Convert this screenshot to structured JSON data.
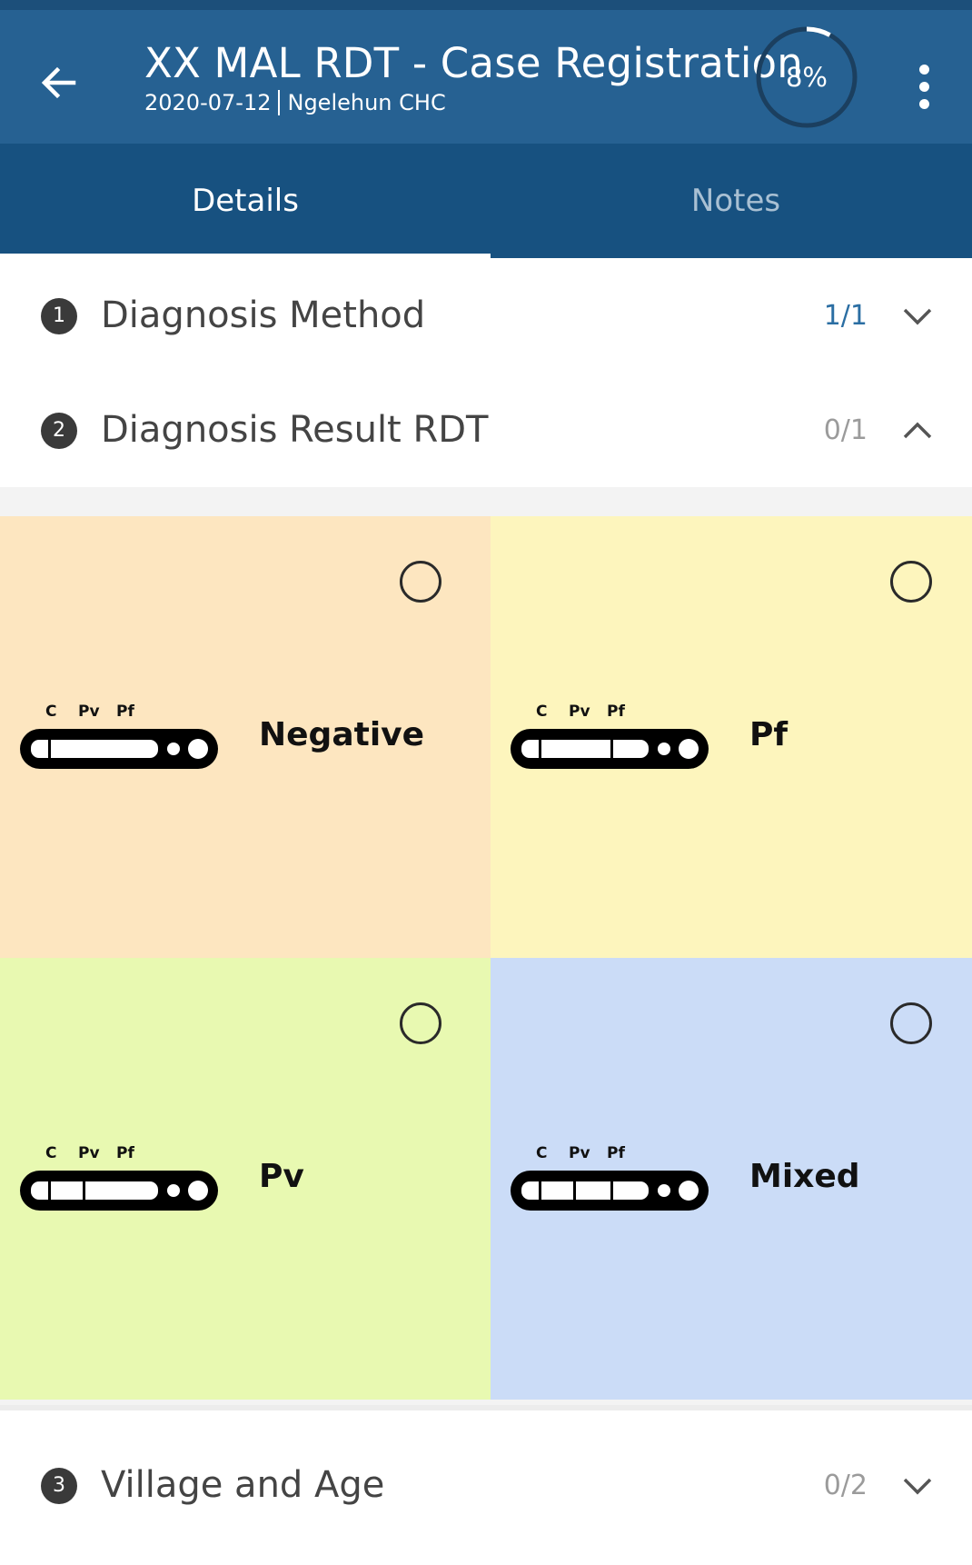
{
  "header": {
    "title": "XX MAL RDT - Case Registration",
    "date": "2020-07-12",
    "org_unit": "Ngelehun CHC",
    "progress_label": "8%",
    "progress_value": 0.08
  },
  "tabs": [
    {
      "label": "Details",
      "active": true
    },
    {
      "label": "Notes",
      "active": false
    }
  ],
  "sections": [
    {
      "number": "1",
      "title": "Diagnosis Method",
      "count": "1/1",
      "expanded": false
    },
    {
      "number": "2",
      "title": "Diagnosis Result RDT",
      "count": "0/1",
      "expanded": true
    },
    {
      "number": "3",
      "title": "Village and Age",
      "count": "0/2",
      "expanded": false
    }
  ],
  "options": [
    {
      "label": "Negative",
      "color": "#fde6c0",
      "lines": [
        "C"
      ],
      "selected": false
    },
    {
      "label": "Pf",
      "color": "#fdf5bd",
      "lines": [
        "C",
        "Pf"
      ],
      "selected": false
    },
    {
      "label": "Pv",
      "color": "#e8f9b1",
      "lines": [
        "C",
        "Pv"
      ],
      "selected": false
    },
    {
      "label": "Mixed",
      "color": "#cbdcf7",
      "lines": [
        "C",
        "Pv",
        "Pf"
      ],
      "selected": false
    }
  ],
  "strip_labels": {
    "c": "C",
    "pv": "Pv",
    "pf": "Pf"
  },
  "icons": {
    "back": "arrow-left-icon",
    "menu": "more-vert-icon",
    "collapsed": "chevron-down-icon",
    "expanded": "chevron-up-icon"
  },
  "colors": {
    "app_bar": "#266192",
    "tab_bar": "#175180",
    "accent": "#2b6ea3",
    "progress_ring": "#ffffff"
  }
}
